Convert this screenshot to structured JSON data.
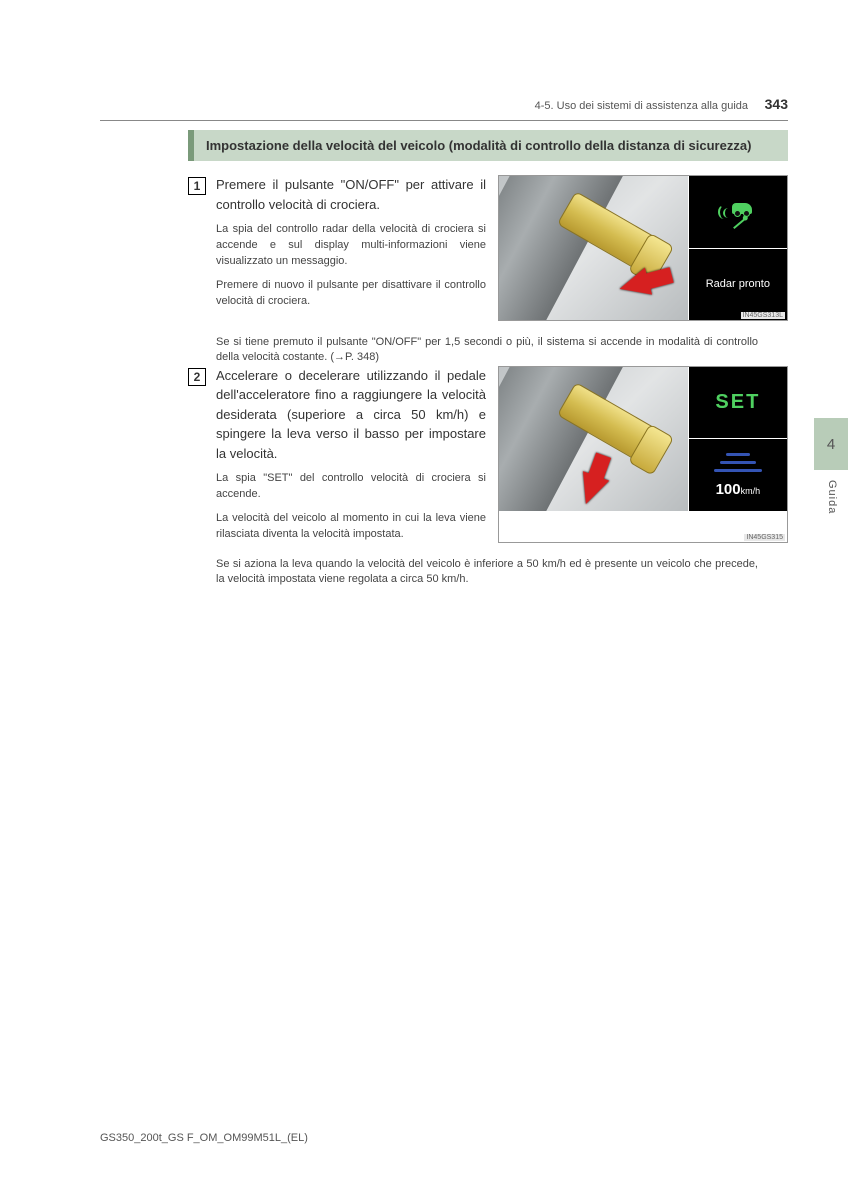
{
  "page": {
    "section_ref": "4-5. Uso dei sistemi di assistenza alla guida",
    "number": "343",
    "side_tab": "4",
    "side_label": "Guida",
    "footer": "GS350_200t_GS F_OM_OM99M51L_(EL)"
  },
  "heading": "Impostazione della velocità del veicolo (modalità di controllo della distanza di sicurezza)",
  "steps": [
    {
      "num": "1",
      "main": "Premere il pulsante \"ON/OFF\" per attivare il controllo velocità di crociera.",
      "subs": [
        "La spia del controllo radar della velocità di crociera si accende e sul display multi-informazioni viene visualizzato un messaggio.",
        "Premere di nuovo il pulsante per disattivare il controllo velocità di crociera."
      ],
      "note_after": "Se si tiene premuto il pulsante \"ON/OFF\" per 1,5 secondi o più, il sistema si accende in modalità di controllo della velocità costante. (→P. 348)",
      "display": {
        "radar_text": "Radar pronto",
        "img_ref": "IN45GS313L"
      }
    },
    {
      "num": "2",
      "main": "Accelerare o decelerare utilizzando il pedale dell'acceleratore fino a raggiungere la velocità desiderata (superiore a circa 50 km/h) e spingere la leva verso il basso per impostare la velocità.",
      "subs": [
        "La spia \"SET\" del controllo velocità di crociera si accende.",
        "La velocità del veicolo al momento in cui la leva viene rilasciata diventa la velocità impostata."
      ],
      "note_after": "Se si aziona la leva quando la velocità del veicolo è inferiore a 50 km/h ed è presente un veicolo che precede, la velocità impostata viene regolata a circa 50 km/h.",
      "display": {
        "set_label": "SET",
        "speed_value": "100",
        "speed_unit": "km/h",
        "img_ref": "IN45GS315"
      }
    }
  ],
  "colors": {
    "heading_bg": "#c8d8c8",
    "heading_border": "#7a9a7a",
    "accent_green": "#4fd060",
    "arrow_red": "#d62020",
    "road_blue": "#3454b4",
    "side_tab_bg": "#b8ccb8"
  }
}
